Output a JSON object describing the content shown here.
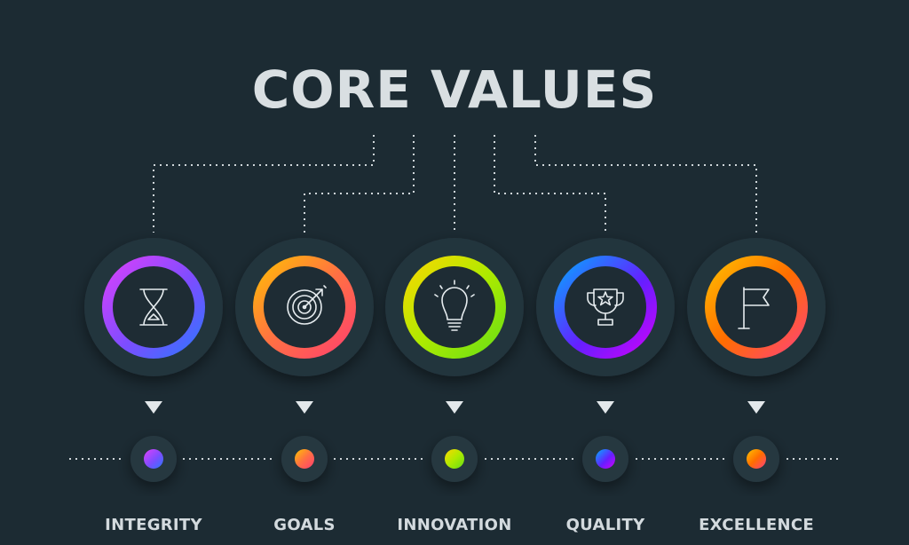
{
  "title": "CORE VALUES",
  "values": [
    {
      "label": "INTEGRITY",
      "icon": "hourglass-icon",
      "colors": [
        "#e040fb",
        "#7c4dff",
        "#2979ff"
      ]
    },
    {
      "label": "GOALS",
      "icon": "target-icon",
      "colors": [
        "#ffb300",
        "#ff7043",
        "#ff3d71"
      ]
    },
    {
      "label": "INNOVATION",
      "icon": "lightbulb-icon",
      "colors": [
        "#ffd600",
        "#aeea00",
        "#64dd17"
      ]
    },
    {
      "label": "QUALITY",
      "icon": "trophy-icon",
      "colors": [
        "#00b0ff",
        "#651fff",
        "#d500f9"
      ]
    },
    {
      "label": "EXCELLENCE",
      "icon": "flag-icon",
      "colors": [
        "#ffab00",
        "#ff6d00",
        "#ff4081"
      ]
    }
  ],
  "colors": {
    "background": "#1c2b33",
    "disc": "#263640",
    "dotted_line": "#cfd6da",
    "text": "#d9dfe2"
  }
}
